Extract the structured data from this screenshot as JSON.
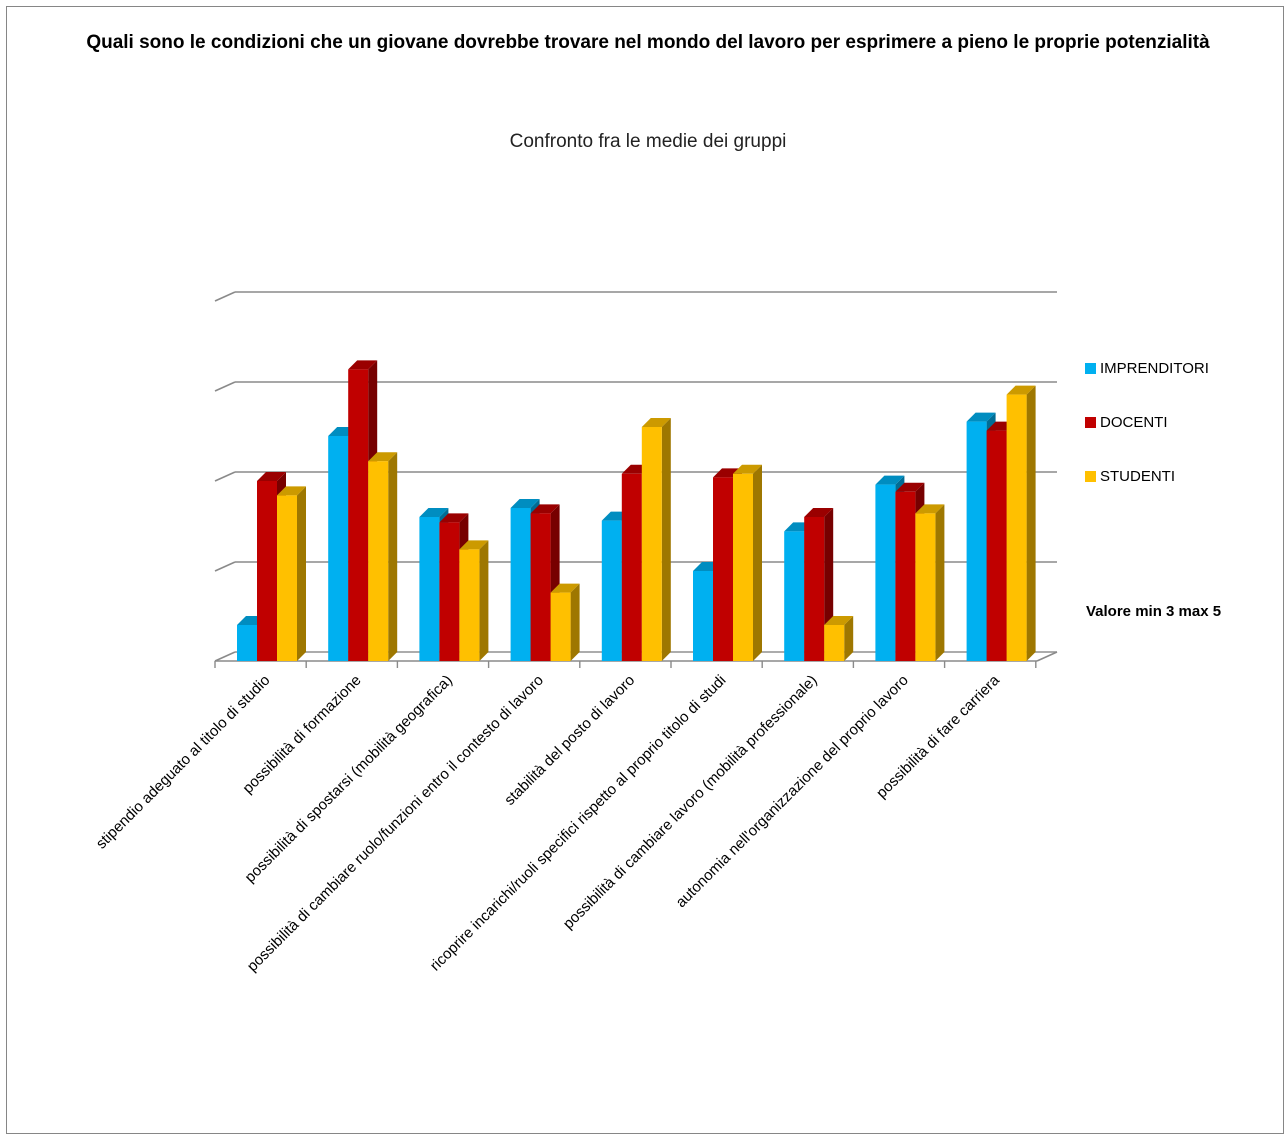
{
  "chart_data": {
    "type": "bar",
    "title": "Quali sono le condizioni che un giovane dovrebbe trovare nel mondo del lavoro per esprimere a pieno le proprie potenzialità",
    "subtitle": "Confronto fra le medie dei gruppi",
    "categories": [
      "stipendio adeguato al titolo di studio",
      "possibilità di formazione",
      "possibilità di spostarsi (mobilità geografica)",
      "possibilità di cambiare ruolo/funzioni entro il contesto di lavoro",
      "stabilità del posto di lavoro",
      "ricoprire incarichi/ruoli specifici rispetto al proprio titolo di studi",
      "possibilità di cambiare lavoro (mobilità professionale)",
      "autonomia nell'organizzazione del proprio lavoro",
      "possibilità di fare carriera"
    ],
    "series": [
      {
        "name": "IMPRENDITORI",
        "color": "#00B0F0",
        "values": [
          3.2,
          4.25,
          3.8,
          3.85,
          3.78,
          3.5,
          3.72,
          3.98,
          4.33
        ]
      },
      {
        "name": "DOCENTI",
        "color": "#C00000",
        "values": [
          4.0,
          4.62,
          3.77,
          3.82,
          4.04,
          4.02,
          3.8,
          3.94,
          4.28
        ]
      },
      {
        "name": "STUDENTI",
        "color": "#FFC000",
        "values": [
          3.92,
          4.11,
          3.62,
          3.38,
          4.3,
          4.04,
          3.2,
          3.82,
          4.48
        ]
      }
    ],
    "ylim": [
      3,
      5
    ],
    "grid": true,
    "legend_position": "right",
    "note": "Valore min 3 max 5"
  }
}
